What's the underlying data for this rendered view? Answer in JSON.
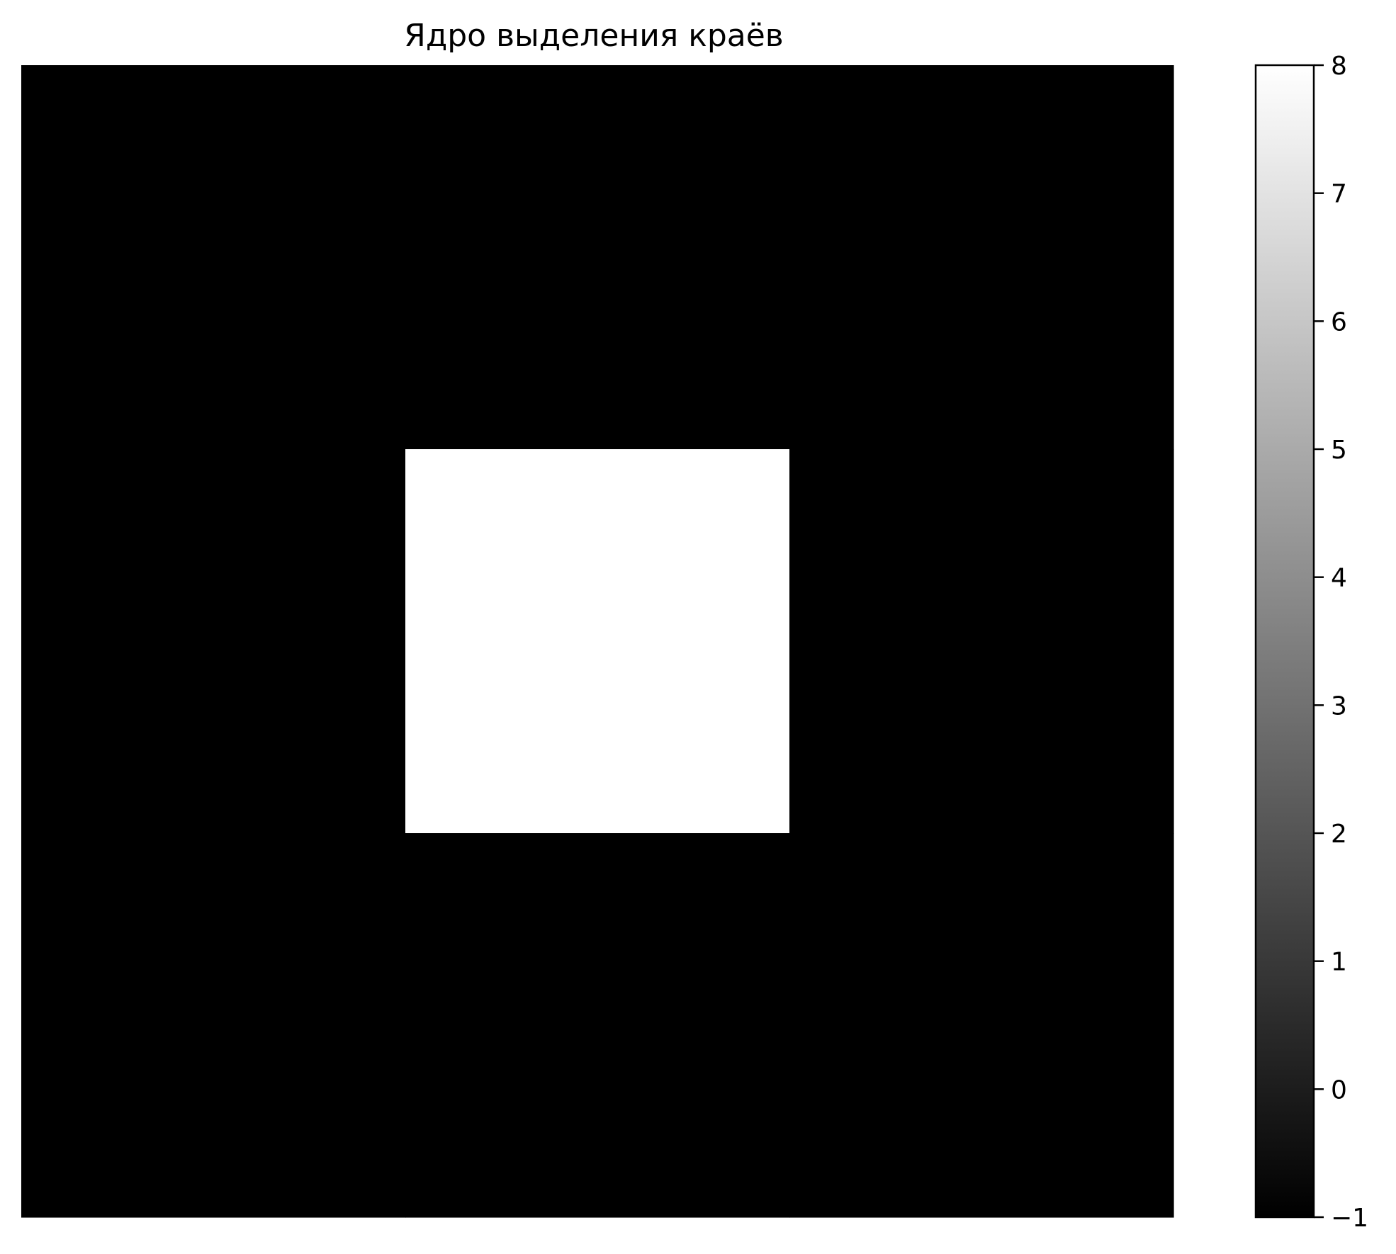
{
  "chart_data": {
    "type": "heatmap",
    "title": "Ядро выделения краёв",
    "matrix": [
      [
        -1,
        -1,
        -1
      ],
      [
        -1,
        8,
        -1
      ],
      [
        -1,
        -1,
        -1
      ]
    ],
    "colormap": {
      "name": "gray",
      "low_color": "#000000",
      "high_color": "#ffffff"
    },
    "colorbar": {
      "range": [
        -1,
        8
      ],
      "ticks": [
        -1,
        0,
        1,
        2,
        3,
        4,
        5,
        6,
        7,
        8
      ],
      "tick_labels": [
        "−1",
        "0",
        "1",
        "2",
        "3",
        "4",
        "5",
        "6",
        "7",
        "8"
      ],
      "placement": "right"
    },
    "axes_visible": false,
    "grid": false
  }
}
